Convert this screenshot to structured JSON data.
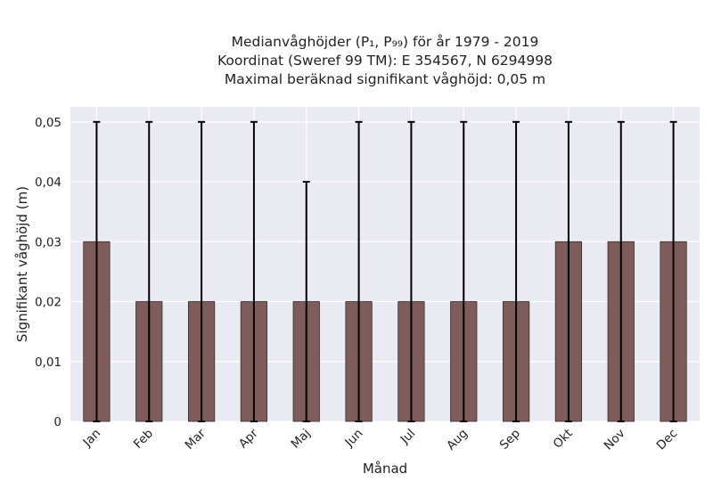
{
  "chart_data": {
    "type": "bar",
    "title_lines": [
      "Medianvåghöjder (P₁, P₉₉) för år 1979 - 2019",
      "Koordinat (Sweref 99 TM): E 354567, N 6294998",
      "Maximal beräknad signifikant våghöjd: 0,05 m"
    ],
    "xlabel": "Månad",
    "ylabel": "Signifikant våghöjd (m)",
    "categories": [
      "Jan",
      "Feb",
      "Mar",
      "Apr",
      "Maj",
      "Jun",
      "Jul",
      "Aug",
      "Sep",
      "Okt",
      "Nov",
      "Dec"
    ],
    "values": [
      0.03,
      0.02,
      0.02,
      0.02,
      0.02,
      0.02,
      0.02,
      0.02,
      0.02,
      0.03,
      0.03,
      0.03
    ],
    "error_low": [
      0,
      0,
      0,
      0,
      0,
      0,
      0,
      0,
      0,
      0,
      0,
      0
    ],
    "error_high": [
      0.05,
      0.05,
      0.05,
      0.05,
      0.04,
      0.05,
      0.05,
      0.05,
      0.05,
      0.05,
      0.05,
      0.05
    ],
    "ylim": [
      0,
      0.0525
    ],
    "yticks": [
      0,
      0.01,
      0.02,
      0.03,
      0.04,
      0.05
    ],
    "ytick_labels": [
      "0",
      "0,01",
      "0,02",
      "0,03",
      "0,04",
      "0,05"
    ],
    "grid": true,
    "colors": {
      "bar": "#7e5c5c",
      "bar_edge": "#3a2a2a",
      "error": "#000000",
      "plot_bg": "#eaeaf2",
      "grid": "#ffffff"
    }
  }
}
